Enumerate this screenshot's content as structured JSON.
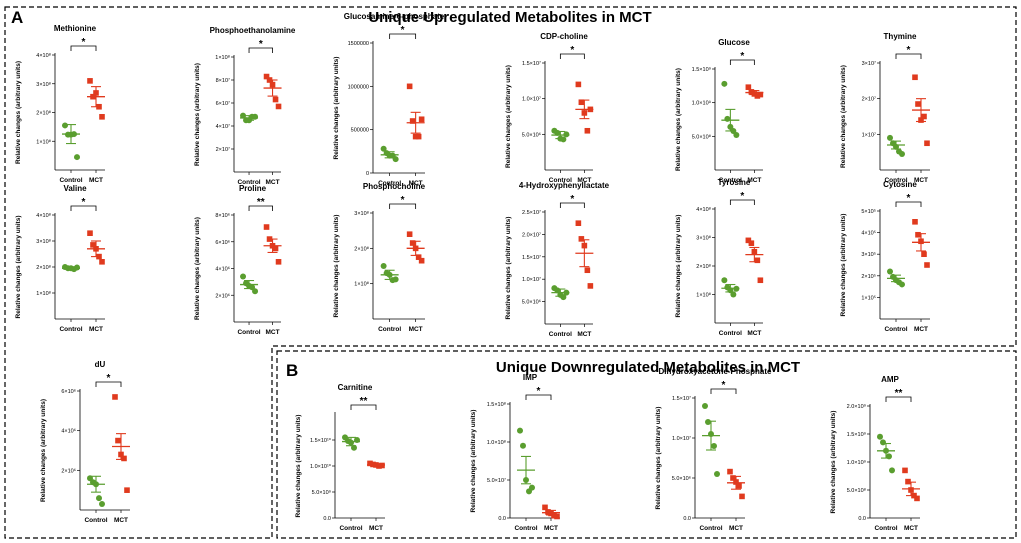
{
  "sections": {
    "a": {
      "letter": "A",
      "title": "Unique Upregulated Metabolites in MCT"
    },
    "b": {
      "letter": "B",
      "title": "Unique Downregulated Metabolites in MCT"
    }
  },
  "colors": {
    "control": "#5a9e2f",
    "mct": "#e03a1e",
    "axis": "#000000",
    "border": "#000000"
  },
  "chart_data": [
    {
      "type": "scatter",
      "title": "Methionine",
      "ylabel": "Relative changes (arbitrary units)",
      "categories": [
        "Control",
        "MCT"
      ],
      "yticks": {
        "values": [
          100000000,
          200000000,
          300000000,
          400000000
        ],
        "labels": [
          "1×10⁸",
          "2×10⁸",
          "3×10⁸",
          "4×10⁸"
        ]
      },
      "ylim": [
        0,
        400000000
      ],
      "significance": "*",
      "series": [
        {
          "name": "Control",
          "mean": 125000000,
          "sem": 33000000,
          "points": [
            155000000,
            123000000,
            123000000,
            125000000,
            45000000
          ]
        },
        {
          "name": "MCT",
          "mean": 255000000,
          "sem": 35000000,
          "points": [
            310000000,
            255000000,
            268000000,
            220000000,
            185000000
          ]
        }
      ]
    },
    {
      "type": "scatter",
      "title": "Phosphoethanolamine",
      "ylabel": "Relative changes (arbitrary units)",
      "categories": [
        "Control",
        "MCT"
      ],
      "yticks": {
        "values": [
          20000000,
          40000000,
          60000000,
          80000000,
          100000000
        ],
        "labels": [
          "2×10⁷",
          "4×10⁷",
          "6×10⁷",
          "8×10⁷",
          "1×10⁸"
        ]
      },
      "ylim": [
        0,
        100000000
      ],
      "significance": "*",
      "series": [
        {
          "name": "Control",
          "mean": 47000000,
          "sem": 2000000,
          "points": [
            49000000,
            45000000,
            45000000,
            48000000,
            48000000
          ]
        },
        {
          "name": "MCT",
          "mean": 73000000,
          "sem": 7000000,
          "points": [
            83000000,
            80000000,
            76000000,
            63000000,
            57000000
          ]
        }
      ]
    },
    {
      "type": "scatter",
      "title": "Glucosamine-6-phosphate",
      "ylabel": "Relative changes (arbitrary units)",
      "categories": [
        "Control",
        "MCT"
      ],
      "yticks": {
        "values": [
          0,
          500000,
          1000000,
          1500000
        ],
        "labels": [
          "0",
          "500000",
          "1000000",
          "1500000"
        ]
      },
      "ylim": [
        0,
        1500000
      ],
      "significance": "*",
      "series": [
        {
          "name": "Control",
          "mean": 210000,
          "sem": 35000,
          "points": [
            280000,
            230000,
            200000,
            200000,
            160000
          ]
        },
        {
          "name": "MCT",
          "mean": 580000,
          "sem": 120000,
          "points": [
            1000000,
            600000,
            420000,
            420000,
            620000
          ]
        }
      ]
    },
    {
      "type": "scatter",
      "title": "CDP-choline",
      "ylabel": "Relative changes (arbitrary units)",
      "categories": [
        "Control",
        "MCT"
      ],
      "yticks": {
        "values": [
          5000000,
          10000000,
          15000000
        ],
        "labels": [
          "5.0×10⁶",
          "1.0×10⁷",
          "1.5×10⁷"
        ]
      },
      "ylim": [
        0,
        15000000
      ],
      "significance": "*",
      "series": [
        {
          "name": "Control",
          "mean": 4900000,
          "sem": 500000,
          "points": [
            5500000,
            5200000,
            4400000,
            4300000,
            5000000
          ]
        },
        {
          "name": "MCT",
          "mean": 8500000,
          "sem": 1300000,
          "points": [
            12000000,
            9500000,
            8000000,
            5500000,
            8500000
          ]
        }
      ]
    },
    {
      "type": "scatter",
      "title": "Glucose",
      "ylabel": "Relative changes (arbitrary units)",
      "categories": [
        "Control",
        "MCT"
      ],
      "yticks": {
        "values": [
          500000000,
          1000000000,
          1500000000
        ],
        "labels": [
          "5.0×10⁸",
          "1.0×10⁹",
          "1.5×10⁹"
        ]
      },
      "ylim": [
        0,
        1500000000
      ],
      "significance": "*",
      "series": [
        {
          "name": "Control",
          "mean": 740000000,
          "sem": 160000000,
          "points": [
            1280000000,
            760000000,
            640000000,
            580000000,
            520000000
          ]
        },
        {
          "name": "MCT",
          "mean": 1150000000,
          "sem": 30000000,
          "points": [
            1230000000,
            1160000000,
            1130000000,
            1100000000,
            1120000000
          ]
        }
      ]
    },
    {
      "type": "scatter",
      "title": "Thymine",
      "ylabel": "Relative changes (arbitrary units)",
      "categories": [
        "Control",
        "MCT"
      ],
      "yticks": {
        "values": [
          10000000,
          20000000,
          30000000
        ],
        "labels": [
          "1×10⁷",
          "2×10⁷",
          "3×10⁷"
        ]
      },
      "ylim": [
        0,
        30000000
      ],
      "significance": "*",
      "series": [
        {
          "name": "Control",
          "mean": 7000000,
          "sem": 1100000,
          "points": [
            9000000,
            7500000,
            6500000,
            5200000,
            4500000
          ]
        },
        {
          "name": "MCT",
          "mean": 16800000,
          "sem": 3200000,
          "points": [
            26000000,
            18500000,
            14000000,
            15000000,
            7500000
          ]
        }
      ]
    },
    {
      "type": "scatter",
      "title": "Valine",
      "ylabel": "Relative changes (arbitrary units)",
      "categories": [
        "Control",
        "MCT"
      ],
      "yticks": {
        "values": [
          100000000,
          200000000,
          300000000,
          400000000
        ],
        "labels": [
          "1×10⁸",
          "2×10⁸",
          "3×10⁸",
          "4×10⁸"
        ]
      },
      "ylim": [
        0,
        400000000
      ],
      "significance": "*",
      "series": [
        {
          "name": "Control",
          "mean": 195000000,
          "sem": 5000000,
          "points": [
            200000000,
            195000000,
            195000000,
            192000000,
            198000000
          ]
        },
        {
          "name": "MCT",
          "mean": 270000000,
          "sem": 30000000,
          "points": [
            330000000,
            285000000,
            270000000,
            240000000,
            220000000
          ]
        }
      ]
    },
    {
      "type": "scatter",
      "title": "Proline",
      "ylabel": "Relative changes (arbitrary units)",
      "categories": [
        "Control",
        "MCT"
      ],
      "yticks": {
        "values": [
          2000000,
          4000000,
          6000000,
          8000000
        ],
        "labels": [
          "2×10⁶",
          "4×10⁶",
          "6×10⁶",
          "8×10⁶"
        ]
      },
      "ylim": [
        0,
        8000000
      ],
      "significance": "**",
      "series": [
        {
          "name": "Control",
          "mean": 2800000,
          "sem": 300000,
          "points": [
            3400000,
            2900000,
            2700000,
            2600000,
            2300000
          ]
        },
        {
          "name": "MCT",
          "mean": 5700000,
          "sem": 500000,
          "points": [
            7100000,
            6200000,
            5700000,
            5500000,
            4500000
          ]
        }
      ]
    },
    {
      "type": "scatter",
      "title": "Phosphocholine",
      "ylabel": "Relative changes (arbitrary units)",
      "categories": [
        "Control",
        "MCT"
      ],
      "yticks": {
        "values": [
          100000000,
          200000000,
          300000000
        ],
        "labels": [
          "1×10⁸",
          "2×10⁸",
          "3×10⁸"
        ]
      },
      "ylim": [
        0,
        300000000
      ],
      "significance": "*",
      "series": [
        {
          "name": "Control",
          "mean": 125000000,
          "sem": 13000000,
          "points": [
            150000000,
            130000000,
            125000000,
            110000000,
            112000000
          ]
        },
        {
          "name": "MCT",
          "mean": 200000000,
          "sem": 20000000,
          "points": [
            240000000,
            215000000,
            200000000,
            175000000,
            165000000
          ]
        }
      ]
    },
    {
      "type": "scatter",
      "title": "4-Hydroxyphenyllactate",
      "ylabel": "Relative changes (arbitrary units)",
      "categories": [
        "Control",
        "MCT"
      ],
      "yticks": {
        "values": [
          5000000,
          10000000,
          15000000,
          20000000,
          25000000
        ],
        "labels": [
          "5.0×10⁶",
          "1.0×10⁷",
          "1.5×10⁷",
          "2.0×10⁷",
          "2.5×10⁷"
        ]
      },
      "ylim": [
        0,
        25000000
      ],
      "significance": "*",
      "series": [
        {
          "name": "Control",
          "mean": 7000000,
          "sem": 800000,
          "points": [
            8000000,
            7500000,
            6500000,
            6000000,
            7000000
          ]
        },
        {
          "name": "MCT",
          "mean": 15800000,
          "sem": 3000000,
          "points": [
            22500000,
            19000000,
            17500000,
            12000000,
            8500000
          ]
        }
      ]
    },
    {
      "type": "scatter",
      "title": "Tyrosine",
      "ylabel": "Relative changes (arbitrary units)",
      "categories": [
        "Control",
        "MCT"
      ],
      "yticks": {
        "values": [
          100000000,
          200000000,
          300000000,
          400000000
        ],
        "labels": [
          "1×10⁸",
          "2×10⁸",
          "3×10⁸",
          "4×10⁸"
        ]
      },
      "ylim": [
        0,
        400000000
      ],
      "significance": "*",
      "series": [
        {
          "name": "Control",
          "mean": 122000000,
          "sem": 13000000,
          "points": [
            150000000,
            125000000,
            115000000,
            100000000,
            120000000
          ]
        },
        {
          "name": "MCT",
          "mean": 240000000,
          "sem": 25000000,
          "points": [
            290000000,
            280000000,
            250000000,
            220000000,
            150000000
          ]
        }
      ]
    },
    {
      "type": "scatter",
      "title": "Cytosine",
      "ylabel": "Relative changes (arbitrary units)",
      "categories": [
        "Control",
        "MCT"
      ],
      "yticks": {
        "values": [
          100000,
          200000,
          300000,
          400000,
          500000
        ],
        "labels": [
          "1×10⁵",
          "2×10⁵",
          "3×10⁵",
          "4×10⁵",
          "5×10⁵"
        ]
      },
      "ylim": [
        0,
        500000
      ],
      "significance": "*",
      "series": [
        {
          "name": "Control",
          "mean": 188000,
          "sem": 15000,
          "points": [
            220000,
            195000,
            180000,
            170000,
            160000
          ]
        },
        {
          "name": "MCT",
          "mean": 355000,
          "sem": 40000,
          "points": [
            450000,
            390000,
            360000,
            300000,
            250000
          ]
        }
      ]
    },
    {
      "type": "scatter",
      "title": "dU",
      "ylabel": "Relative changes (arbitrary units)",
      "categories": [
        "Control",
        "MCT"
      ],
      "yticks": {
        "values": [
          2000000,
          4000000,
          6000000
        ],
        "labels": [
          "2×10⁶",
          "4×10⁶",
          "6×10⁶"
        ]
      },
      "ylim": [
        0,
        6000000
      ],
      "significance": "*",
      "series": [
        {
          "name": "Control",
          "mean": 1300000,
          "sem": 400000,
          "points": [
            1600000,
            1400000,
            1300000,
            600000,
            300000
          ]
        },
        {
          "name": "MCT",
          "mean": 3200000,
          "sem": 650000,
          "points": [
            5700000,
            3500000,
            2800000,
            2600000,
            1000000
          ]
        }
      ]
    },
    {
      "type": "scatter",
      "title": "Carnitine",
      "ylabel": "Relative changes (arbitrary units)",
      "categories": [
        "Control",
        "MCT"
      ],
      "yticks": {
        "values": [
          0,
          5000000000,
          10000000000,
          15000000000
        ],
        "labels": [
          "0.0",
          "5.0×10⁹",
          "1.0×10¹⁰",
          "1.5×10¹⁰"
        ]
      },
      "ylim": [
        0,
        20000000000
      ],
      "significance": "**",
      "series": [
        {
          "name": "Control",
          "mean": 14700000000,
          "sem": 800000000,
          "points": [
            15500000000,
            14800000000,
            14500000000,
            13500000000,
            15000000000
          ]
        },
        {
          "name": "MCT",
          "mean": 10200000000,
          "sem": 200000000,
          "points": [
            10500000000,
            10300000000,
            10200000000,
            10000000000,
            10100000000
          ]
        }
      ]
    },
    {
      "type": "scatter",
      "title": "IMP",
      "ylabel": "Relative changes (arbitrary units)",
      "categories": [
        "Control",
        "MCT"
      ],
      "yticks": {
        "values": [
          0,
          50000000,
          100000000,
          150000000
        ],
        "labels": [
          "0.0",
          "5.0×10⁷",
          "1.0×10⁸",
          "1.5×10⁸"
        ]
      },
      "ylim": [
        0,
        150000000
      ],
      "significance": "*",
      "series": [
        {
          "name": "Control",
          "mean": 63000000,
          "sem": 18000000,
          "points": [
            115000000,
            95000000,
            50000000,
            35000000,
            40000000
          ]
        },
        {
          "name": "MCT",
          "mean": 7000000,
          "sem": 3000000,
          "points": [
            14000000,
            8000000,
            6000000,
            3000000,
            2000000
          ]
        }
      ]
    },
    {
      "type": "scatter",
      "title": "Dihydroxyacetone-Phosphate",
      "ylabel": "Relative changes (arbitrary units)",
      "categories": [
        "Control",
        "MCT"
      ],
      "yticks": {
        "values": [
          0,
          5000000,
          10000000,
          15000000
        ],
        "labels": [
          "0.0",
          "5.0×10⁶",
          "1.0×10⁷",
          "1.5×10⁷"
        ]
      },
      "ylim": [
        0,
        15000000
      ],
      "significance": "*",
      "series": [
        {
          "name": "Control",
          "mean": 10300000,
          "sem": 1800000,
          "points": [
            14000000,
            12000000,
            10500000,
            9000000,
            5500000
          ]
        },
        {
          "name": "MCT",
          "mean": 4400000,
          "sem": 800000,
          "points": [
            5800000,
            5000000,
            4500000,
            4000000,
            2700000
          ]
        }
      ]
    },
    {
      "type": "scatter",
      "title": "AMP",
      "ylabel": "Relative changes (arbitrary units)",
      "categories": [
        "Control",
        "MCT"
      ],
      "yticks": {
        "values": [
          0,
          500000000,
          1000000000,
          1500000000,
          2000000000
        ],
        "labels": [
          "0.0",
          "5.0×10⁸",
          "1.0×10⁹",
          "1.5×10⁹",
          "2.0×10⁹"
        ]
      },
      "ylim": [
        0,
        2000000000
      ],
      "significance": "**",
      "series": [
        {
          "name": "Control",
          "mean": 1200000000,
          "sem": 130000000,
          "points": [
            1450000000,
            1350000000,
            1200000000,
            1100000000,
            850000000
          ]
        },
        {
          "name": "MCT",
          "mean": 520000000,
          "sem": 120000000,
          "points": [
            850000000,
            650000000,
            500000000,
            400000000,
            350000000
          ]
        }
      ]
    }
  ]
}
